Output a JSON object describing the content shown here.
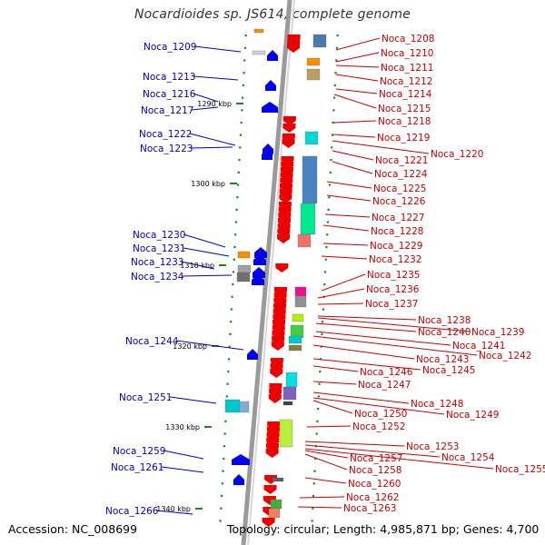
{
  "title": "Nocardioides sp. JS614, complete genome",
  "footer": {
    "accession": "Accession: NC_008699",
    "topology": "Topology: circular; Length: 4,985,871 bp; Genes: 4,700"
  },
  "colors": {
    "plus_strand_label": "#0000cc",
    "minus_strand_label": "#cc0000",
    "backbone": "#9a9a9a",
    "tick": "#1a8a1a"
  },
  "kbp_marks": [
    "1290 kbp",
    "1300 kbp",
    "1310 kbp",
    "1320 kbp",
    "1330 kbp",
    "1340 kbp"
  ],
  "left_genes": [
    "Noca_1209",
    "Noca_1213",
    "Noca_1216",
    "Noca_1217",
    "Noca_1222",
    "Noca_1223",
    "Noca_1230",
    "Noca_1231",
    "Noca_1233",
    "Noca_1234",
    "Noca_1244",
    "Noca_1251",
    "Noca_1259",
    "Noca_1261",
    "Noca_1266"
  ],
  "right_genes": [
    "Noca_1208",
    "Noca_1210",
    "Noca_1211",
    "Noca_1212",
    "Noca_1214",
    "Noca_1215",
    "Noca_1218",
    "Noca_1219",
    "Noca_1220",
    "Noca_1221",
    "Noca_1224",
    "Noca_1225",
    "Noca_1226",
    "Noca_1227",
    "Noca_1228",
    "Noca_1229",
    "Noca_1232",
    "Noca_1235",
    "Noca_1236",
    "Noca_1237",
    "Noca_1238",
    "Noca_1239",
    "Noca_1240",
    "Noca_1241",
    "Noca_1242",
    "Noca_1243",
    "Noca_1245",
    "Noca_1246",
    "Noca_1247",
    "Noca_1248",
    "Noca_1249",
    "Noca_1250",
    "Noca_1252",
    "Noca_1253",
    "Noca_1254",
    "Noca_1255",
    "Noca_1257",
    "Noca_1258",
    "Noca_1260",
    "Noca_1262",
    "Noca_1263"
  ]
}
